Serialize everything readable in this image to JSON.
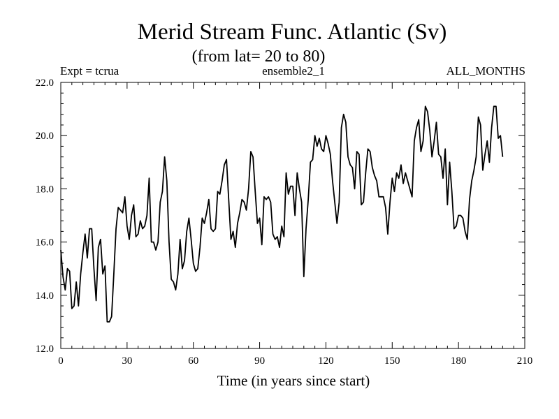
{
  "chart_data": {
    "type": "line",
    "title": "Merid Stream Func. Atlantic (Sv)",
    "subtitle": "(from lat= 20 to 80)",
    "header_left": "Expt = tcrua",
    "header_center": "ensemble2_1",
    "header_right": "ALL_MONTHS",
    "xlabel": "Time (in years since start)",
    "ylabel": "",
    "xlim": [
      0,
      210
    ],
    "ylim": [
      12.0,
      22.0
    ],
    "x_ticks": [
      0,
      30,
      60,
      90,
      120,
      150,
      180,
      210
    ],
    "x_tick_labels": [
      "0",
      "30",
      "60",
      "90",
      "120",
      "150",
      "180",
      "210"
    ],
    "y_ticks": [
      12,
      14,
      16,
      18,
      20,
      22
    ],
    "y_tick_labels": [
      "12.0",
      "14.0",
      "16.0",
      "18.0",
      "20.0",
      "22.0"
    ],
    "line_color": "#000000",
    "series": [
      {
        "name": "ensemble2_1",
        "x_start": 0,
        "x_step": 1,
        "values": [
          15.7,
          14.7,
          14.2,
          15.0,
          14.9,
          13.5,
          13.6,
          14.5,
          13.6,
          14.8,
          15.6,
          16.3,
          15.4,
          16.5,
          16.5,
          15.0,
          13.8,
          15.8,
          16.1,
          14.8,
          15.1,
          13.0,
          13.0,
          13.2,
          14.8,
          16.5,
          17.3,
          17.2,
          17.1,
          17.7,
          16.6,
          16.1,
          17.0,
          17.4,
          16.2,
          16.3,
          16.8,
          16.5,
          16.6,
          17.0,
          18.4,
          16.0,
          16.0,
          15.7,
          16.0,
          17.5,
          17.9,
          19.2,
          18.3,
          16.0,
          14.6,
          14.5,
          14.2,
          14.8,
          16.1,
          15.0,
          15.3,
          16.4,
          16.9,
          16.1,
          15.2,
          14.9,
          15.0,
          15.8,
          16.9,
          16.7,
          17.1,
          17.6,
          16.5,
          16.4,
          16.5,
          17.9,
          17.8,
          18.3,
          18.9,
          19.1,
          17.6,
          16.1,
          16.4,
          15.8,
          16.7,
          17.1,
          17.6,
          17.5,
          17.2,
          18.0,
          19.4,
          19.2,
          17.9,
          16.7,
          16.9,
          15.9,
          17.7,
          17.6,
          17.7,
          17.5,
          16.3,
          16.1,
          16.2,
          15.8,
          16.6,
          16.2,
          18.6,
          17.8,
          18.1,
          18.1,
          17.0,
          18.6,
          18.0,
          17.5,
          14.7,
          16.5,
          17.6,
          19.0,
          19.1,
          20.0,
          19.6,
          19.9,
          19.5,
          19.4,
          20.0,
          19.7,
          19.3,
          18.3,
          17.5,
          16.7,
          17.5,
          20.3,
          20.8,
          20.5,
          19.2,
          18.9,
          18.8,
          18.0,
          19.4,
          19.3,
          17.4,
          17.5,
          18.6,
          19.5,
          19.4,
          18.8,
          18.5,
          18.3,
          17.7,
          17.7,
          17.7,
          17.3,
          16.3,
          17.5,
          18.4,
          17.9,
          18.6,
          18.4,
          18.9,
          18.2,
          18.6,
          18.3,
          18.0,
          17.7,
          19.8,
          20.3,
          20.6,
          19.4,
          19.8,
          21.1,
          20.9,
          20.2,
          19.2,
          19.8,
          20.5,
          19.3,
          19.2,
          18.4,
          19.5,
          17.4,
          19.0,
          17.9,
          16.5,
          16.6,
          17.0,
          17.0,
          16.9,
          16.4,
          16.1,
          17.6,
          18.3,
          18.7,
          19.2,
          20.7,
          20.4,
          18.7,
          19.3,
          19.8,
          19.0,
          20.3,
          21.1,
          21.1,
          19.9,
          20.0,
          19.2
        ]
      }
    ]
  }
}
